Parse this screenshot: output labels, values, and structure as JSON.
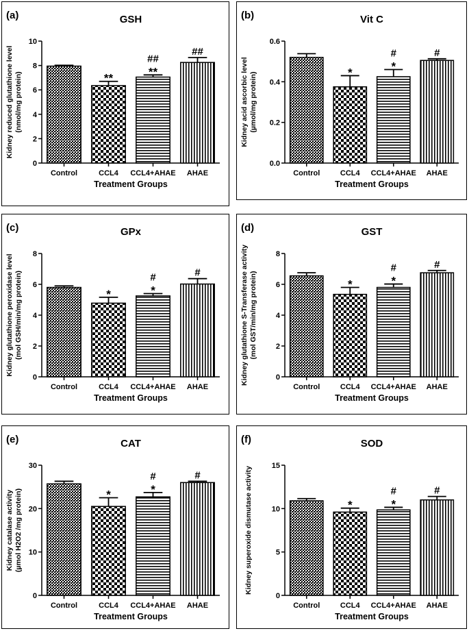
{
  "chart_data": [
    {
      "type": "bar",
      "panel_label": "(a)",
      "title": "GSH",
      "ylabel_lines": [
        "Kidney reduced glutathione level",
        "(nmol/mg protein)"
      ],
      "xlabel": "Treatment Groups",
      "categories": [
        "Control",
        "CCL4",
        "CCL4+AHAE",
        "AHAE"
      ],
      "values": [
        7.95,
        6.35,
        7.05,
        8.25
      ],
      "errors": [
        0.07,
        0.35,
        0.18,
        0.4
      ],
      "annotations": [
        [],
        [
          "**"
        ],
        [
          "##",
          "**"
        ],
        [
          "##"
        ]
      ],
      "ylim": [
        0,
        10
      ],
      "yticks": [
        0,
        2,
        4,
        6,
        8,
        10
      ],
      "ytick_labels": [
        "0",
        "2",
        "4",
        "6",
        "8",
        "10"
      ],
      "patterns": [
        "dense-cross",
        "checker",
        "horizontal",
        "vertical"
      ]
    },
    {
      "type": "bar",
      "panel_label": "(b)",
      "title": "Vit C",
      "ylabel_lines": [
        "Kidney acid ascorbic level",
        "(µmol/mg protein)"
      ],
      "xlabel": "Treatment Groups",
      "categories": [
        "Control",
        "CCL4",
        "CCL4+AHAE",
        "AHAE"
      ],
      "values": [
        0.52,
        0.375,
        0.425,
        0.505
      ],
      "errors": [
        0.018,
        0.055,
        0.035,
        0.008
      ],
      "annotations": [
        [],
        [
          "*"
        ],
        [
          "#",
          "*"
        ],
        [
          "#"
        ]
      ],
      "ylim": [
        0,
        0.6
      ],
      "yticks": [
        0,
        0.2,
        0.4,
        0.6
      ],
      "ytick_labels": [
        "0.0",
        "0.2",
        "0.4",
        "0.6"
      ],
      "patterns": [
        "dense-cross",
        "checker",
        "horizontal",
        "vertical"
      ]
    },
    {
      "type": "bar",
      "panel_label": "(c)",
      "title": "GPx",
      "ylabel_lines": [
        "Kidney glutathione peroxidase level",
        "(mol GSH/min/mg protein)"
      ],
      "xlabel": "Treatment Groups",
      "categories": [
        "Control",
        "CCL4",
        "CCL4+AHAE",
        "AHAE"
      ],
      "values": [
        5.8,
        4.78,
        5.25,
        6.02
      ],
      "errors": [
        0.1,
        0.38,
        0.15,
        0.35
      ],
      "annotations": [
        [],
        [
          "*"
        ],
        [
          "#",
          "*"
        ],
        [
          "#"
        ]
      ],
      "ylim": [
        0,
        8
      ],
      "yticks": [
        0,
        2,
        4,
        6,
        8
      ],
      "ytick_labels": [
        "0",
        "2",
        "4",
        "6",
        "8"
      ],
      "patterns": [
        "dense-cross",
        "checker",
        "horizontal",
        "vertical"
      ]
    },
    {
      "type": "bar",
      "panel_label": "(d)",
      "title": "GST",
      "ylabel_lines": [
        "Kidney glutathione S-Transferase activity",
        "(mol GST/min/mg protein)"
      ],
      "xlabel": "Treatment Groups",
      "categories": [
        "Control",
        "CCL4",
        "CCL4+AHAE",
        "AHAE"
      ],
      "values": [
        6.55,
        5.35,
        5.8,
        6.75
      ],
      "errors": [
        0.2,
        0.45,
        0.22,
        0.15
      ],
      "annotations": [
        [],
        [
          "*"
        ],
        [
          "#",
          "*"
        ],
        [
          "#"
        ]
      ],
      "ylim": [
        0,
        8
      ],
      "yticks": [
        0,
        2,
        4,
        6,
        8
      ],
      "ytick_labels": [
        "0",
        "2",
        "4",
        "6",
        "8"
      ],
      "patterns": [
        "dense-cross",
        "checker",
        "horizontal",
        "vertical"
      ]
    },
    {
      "type": "bar",
      "panel_label": "(e)",
      "title": "CAT",
      "ylabel_lines": [
        "Kidney catalase activity",
        "(µmol H2O2 /mg protein)"
      ],
      "xlabel": "Treatment Groups",
      "categories": [
        "Control",
        "CCL4",
        "CCL4+AHAE",
        "AHAE"
      ],
      "values": [
        25.7,
        20.5,
        22.7,
        26.0
      ],
      "errors": [
        0.6,
        2.0,
        1.0,
        0.3
      ],
      "annotations": [
        [],
        [
          "*"
        ],
        [
          "#",
          "*"
        ],
        [
          "#"
        ]
      ],
      "ylim": [
        0,
        30
      ],
      "yticks": [
        0,
        10,
        20,
        30
      ],
      "ytick_labels": [
        "0",
        "10",
        "20",
        "30"
      ],
      "patterns": [
        "dense-cross",
        "checker",
        "horizontal",
        "vertical"
      ]
    },
    {
      "type": "bar",
      "panel_label": "(f)",
      "title": "SOD",
      "ylabel_lines": [
        "Kidney superoxide dismutase activity"
      ],
      "xlabel": "Treatment Groups",
      "categories": [
        "Control",
        "CCL4",
        "CCL4+AHAE",
        "AHAE"
      ],
      "values": [
        10.9,
        9.6,
        9.85,
        11.0
      ],
      "errors": [
        0.25,
        0.45,
        0.3,
        0.4
      ],
      "annotations": [
        [],
        [
          "*"
        ],
        [
          "#",
          "*"
        ],
        [
          "#"
        ]
      ],
      "ylim": [
        0,
        15
      ],
      "yticks": [
        0,
        5,
        10,
        15
      ],
      "ytick_labels": [
        "0",
        "5",
        "10",
        "15"
      ],
      "patterns": [
        "dense-cross",
        "checker",
        "horizontal",
        "vertical"
      ]
    }
  ]
}
